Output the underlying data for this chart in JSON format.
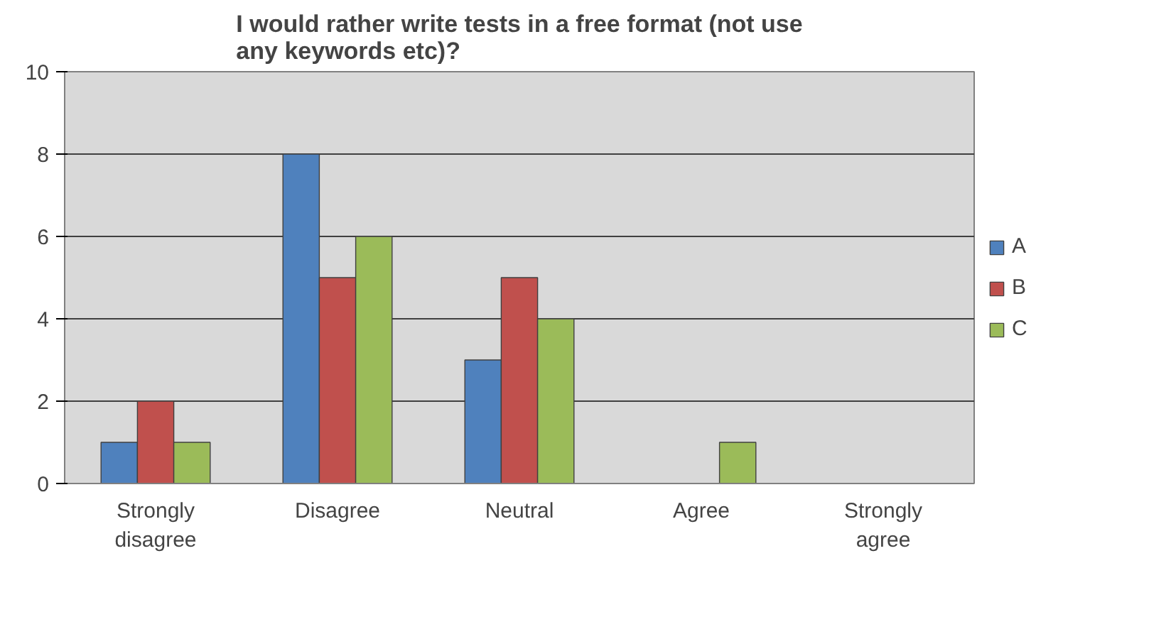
{
  "chart_data": {
    "type": "bar",
    "title": "I would rather write tests in a free format (not use any keywords etc)?",
    "categories": [
      "Strongly disagree",
      "Disagree",
      "Neutral",
      "Agree",
      "Strongly agree"
    ],
    "series": [
      {
        "name": "A",
        "color": "#4f81bd",
        "values": [
          1,
          8,
          3,
          0,
          0
        ]
      },
      {
        "name": "B",
        "color": "#c0504d",
        "values": [
          2,
          5,
          5,
          0,
          0
        ]
      },
      {
        "name": "C",
        "color": "#9bbb59",
        "values": [
          1,
          6,
          4,
          1,
          0
        ]
      }
    ],
    "ylim": [
      0,
      10
    ],
    "yticks": [
      0,
      2,
      4,
      6,
      8,
      10
    ],
    "grid": "y",
    "legend": "right"
  }
}
